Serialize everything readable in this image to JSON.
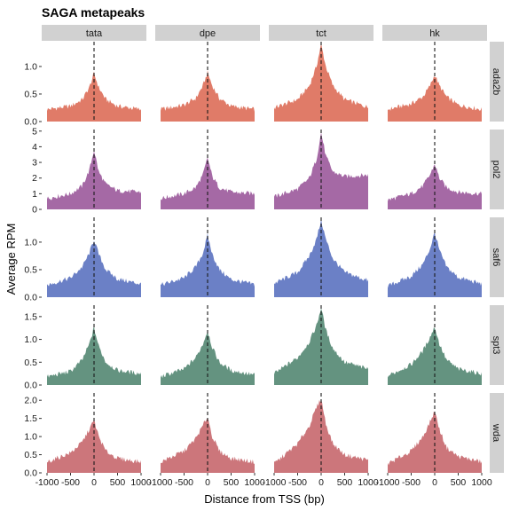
{
  "chart_data": {
    "type": "area",
    "title": "SAGA metapeaks",
    "xlabel": "Distance from TSS (bp)",
    "ylabel": "Average RPM",
    "xlim": [
      -1000,
      1000
    ],
    "x_ticks": [
      -1000,
      -500,
      0,
      500,
      1000
    ],
    "x_tick_labels": [
      "-1000",
      "-500",
      "0",
      "500",
      "1000"
    ],
    "tss_marker": 0,
    "grid": false,
    "legend": "none",
    "columns": [
      "tata",
      "dpe",
      "tct",
      "hk"
    ],
    "rows": [
      {
        "name": "ada2b",
        "color": "#e07b68",
        "ylim": [
          0,
          1.45
        ],
        "y_ticks": [
          0,
          0.5,
          1
        ],
        "y_tick_labels": [
          "0.0",
          "0.5",
          "1.0"
        ],
        "panels": [
          {
            "column": "tata",
            "x": [
              -1000,
              -500,
              -250,
              -100,
              0,
              100,
              250,
              500,
              1000
            ],
            "y": [
              0.22,
              0.28,
              0.4,
              0.62,
              0.87,
              0.62,
              0.4,
              0.28,
              0.22
            ]
          },
          {
            "column": "dpe",
            "x": [
              -1000,
              -500,
              -250,
              -100,
              0,
              100,
              250,
              500,
              1000
            ],
            "y": [
              0.22,
              0.3,
              0.42,
              0.65,
              0.89,
              0.65,
              0.42,
              0.28,
              0.22
            ]
          },
          {
            "column": "tct",
            "x": [
              -1000,
              -500,
              -250,
              -100,
              0,
              100,
              250,
              500,
              1000
            ],
            "y": [
              0.25,
              0.4,
              0.65,
              1.0,
              1.4,
              1.0,
              0.65,
              0.4,
              0.26
            ]
          },
          {
            "column": "hk",
            "x": [
              -1000,
              -500,
              -250,
              -100,
              0,
              100,
              250,
              500,
              1000
            ],
            "y": [
              0.22,
              0.32,
              0.45,
              0.65,
              0.85,
              0.65,
              0.45,
              0.3,
              0.22
            ]
          }
        ]
      },
      {
        "name": "pol2",
        "color": "#a569a5",
        "ylim": [
          0,
          5.1
        ],
        "y_ticks": [
          0,
          1,
          2,
          3,
          4,
          5
        ],
        "y_tick_labels": [
          "0",
          "1",
          "2",
          "3",
          "4",
          "5"
        ],
        "panels": [
          {
            "column": "tata",
            "x": [
              -1000,
              -500,
              -250,
              -100,
              0,
              100,
              250,
              500,
              1000
            ],
            "y": [
              0.7,
              1.0,
              1.5,
              2.5,
              3.8,
              2.4,
              1.6,
              1.2,
              1.1
            ]
          },
          {
            "column": "dpe",
            "x": [
              -1000,
              -500,
              -250,
              -100,
              0,
              100,
              250,
              500,
              1000
            ],
            "y": [
              0.7,
              1.0,
              1.4,
              2.2,
              3.3,
              2.1,
              1.4,
              1.1,
              1.0
            ]
          },
          {
            "column": "tct",
            "x": [
              -1000,
              -500,
              -250,
              -100,
              0,
              100,
              250,
              500,
              1000
            ],
            "y": [
              0.8,
              1.3,
              2.0,
              3.2,
              4.9,
              3.4,
              2.4,
              2.1,
              2.2
            ]
          },
          {
            "column": "hk",
            "x": [
              -1000,
              -500,
              -250,
              -100,
              0,
              100,
              250,
              500,
              1000
            ],
            "y": [
              0.6,
              1.0,
              1.5,
              2.2,
              2.9,
              2.0,
              1.4,
              1.1,
              1.0
            ]
          }
        ]
      },
      {
        "name": "saf6",
        "color": "#6b80c6",
        "ylim": [
          0,
          1.45
        ],
        "y_ticks": [
          0,
          0.5,
          1
        ],
        "y_tick_labels": [
          "0.0",
          "0.5",
          "1.0"
        ],
        "panels": [
          {
            "column": "tata",
            "x": [
              -1000,
              -500,
              -250,
              -100,
              0,
              100,
              250,
              500,
              1000
            ],
            "y": [
              0.22,
              0.35,
              0.55,
              0.8,
              1.05,
              0.78,
              0.5,
              0.33,
              0.24
            ]
          },
          {
            "column": "dpe",
            "x": [
              -1000,
              -500,
              -250,
              -100,
              0,
              100,
              250,
              500,
              1000
            ],
            "y": [
              0.22,
              0.35,
              0.55,
              0.8,
              1.12,
              0.78,
              0.5,
              0.32,
              0.23
            ]
          },
          {
            "column": "tct",
            "x": [
              -1000,
              -500,
              -250,
              -100,
              0,
              100,
              250,
              500,
              1000
            ],
            "y": [
              0.25,
              0.45,
              0.75,
              1.05,
              1.4,
              1.05,
              0.7,
              0.45,
              0.3
            ]
          },
          {
            "column": "hk",
            "x": [
              -1000,
              -500,
              -250,
              -100,
              0,
              100,
              250,
              500,
              1000
            ],
            "y": [
              0.2,
              0.38,
              0.6,
              0.88,
              1.18,
              0.85,
              0.55,
              0.36,
              0.24
            ]
          }
        ]
      },
      {
        "name": "spt3",
        "color": "#649380",
        "ylim": [
          0,
          1.75
        ],
        "y_ticks": [
          0,
          0.5,
          1,
          1.5
        ],
        "y_tick_labels": [
          "0.0",
          "0.5",
          "1.0",
          "1.5"
        ],
        "panels": [
          {
            "column": "tata",
            "x": [
              -1000,
              -500,
              -250,
              -100,
              0,
              100,
              250,
              500,
              1000
            ],
            "y": [
              0.18,
              0.3,
              0.55,
              0.9,
              1.25,
              0.85,
              0.5,
              0.32,
              0.25
            ]
          },
          {
            "column": "dpe",
            "x": [
              -1000,
              -500,
              -250,
              -100,
              0,
              100,
              250,
              500,
              1000
            ],
            "y": [
              0.18,
              0.35,
              0.6,
              0.9,
              1.2,
              0.82,
              0.5,
              0.32,
              0.22
            ]
          },
          {
            "column": "tct",
            "x": [
              -1000,
              -500,
              -250,
              -100,
              0,
              100,
              250,
              500,
              1000
            ],
            "y": [
              0.25,
              0.6,
              0.95,
              1.3,
              1.7,
              1.2,
              0.8,
              0.5,
              0.35
            ]
          },
          {
            "column": "hk",
            "x": [
              -1000,
              -500,
              -250,
              -100,
              0,
              100,
              250,
              500,
              1000
            ],
            "y": [
              0.2,
              0.45,
              0.75,
              1.05,
              1.28,
              0.9,
              0.55,
              0.35,
              0.25
            ]
          }
        ]
      },
      {
        "name": "wda",
        "color": "#cc767b",
        "ylim": [
          0,
          2.2
        ],
        "y_ticks": [
          0,
          0.5,
          1,
          1.5,
          2
        ],
        "y_tick_labels": [
          "0.0",
          "0.5",
          "1.0",
          "1.5",
          "2.0"
        ],
        "panels": [
          {
            "column": "tata",
            "x": [
              -1000,
              -500,
              -250,
              -100,
              0,
              100,
              250,
              500,
              1000
            ],
            "y": [
              0.3,
              0.55,
              0.85,
              1.2,
              1.45,
              1.0,
              0.6,
              0.4,
              0.3
            ]
          },
          {
            "column": "dpe",
            "x": [
              -1000,
              -500,
              -250,
              -100,
              0,
              100,
              250,
              500,
              1000
            ],
            "y": [
              0.3,
              0.6,
              0.95,
              1.3,
              1.55,
              1.0,
              0.6,
              0.4,
              0.3
            ]
          },
          {
            "column": "tct",
            "x": [
              -1000,
              -500,
              -250,
              -100,
              0,
              100,
              250,
              500,
              1000
            ],
            "y": [
              0.25,
              0.8,
              1.3,
              1.8,
              2.05,
              1.35,
              0.8,
              0.5,
              0.35
            ]
          },
          {
            "column": "hk",
            "x": [
              -1000,
              -500,
              -250,
              -100,
              0,
              100,
              250,
              500,
              1000
            ],
            "y": [
              0.25,
              0.6,
              1.0,
              1.4,
              1.7,
              1.2,
              0.7,
              0.45,
              0.3
            ]
          }
        ]
      }
    ]
  }
}
